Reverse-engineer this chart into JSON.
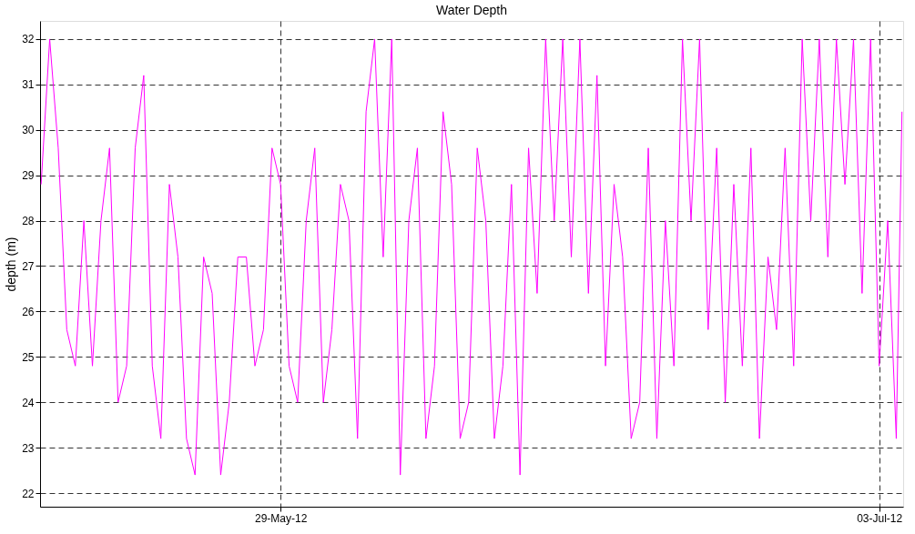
{
  "chart_data": {
    "type": "line",
    "title": "Water Depth",
    "ylabel": "depth (m)",
    "xlim": [
      "2012-05-14T22:30",
      "2012-07-04T09:40"
    ],
    "xticks": [
      {
        "value": "2012-05-29",
        "label": "29-May-12"
      },
      {
        "value": "2012-07-03",
        "label": "03-Jul-12"
      }
    ],
    "ylim": [
      21.7,
      32.4
    ],
    "yticks": [
      22,
      23,
      24,
      25,
      26,
      27,
      28,
      29,
      30,
      31,
      32
    ],
    "grid": true,
    "line_style": "solid",
    "marker": "none",
    "x": [
      "2012-05-15T00:00",
      "2012-05-15T12:00",
      "2012-05-16T00:00",
      "2012-05-16T12:00",
      "2012-05-17T00:00",
      "2012-05-17T12:00",
      "2012-05-18T00:00",
      "2012-05-18T12:00",
      "2012-05-19T00:00",
      "2012-05-19T12:00",
      "2012-05-20T00:00",
      "2012-05-20T12:00",
      "2012-05-21T00:00",
      "2012-05-21T12:00",
      "2012-05-22T00:00",
      "2012-05-22T12:00",
      "2012-05-23T00:00",
      "2012-05-23T12:00",
      "2012-05-24T00:00",
      "2012-05-24T12:00",
      "2012-05-25T00:00",
      "2012-05-25T12:00",
      "2012-05-26T00:00",
      "2012-05-26T12:00",
      "2012-05-27T00:00",
      "2012-05-27T12:00",
      "2012-05-28T00:00",
      "2012-05-28T12:00",
      "2012-05-29T00:00",
      "2012-05-29T12:00",
      "2012-05-30T00:00",
      "2012-05-30T12:00",
      "2012-05-31T00:00",
      "2012-05-31T12:00",
      "2012-06-01T00:00",
      "2012-06-01T12:00",
      "2012-06-02T00:00",
      "2012-06-02T12:00",
      "2012-06-03T00:00",
      "2012-06-03T12:00",
      "2012-06-04T00:00",
      "2012-06-04T12:00",
      "2012-06-05T00:00",
      "2012-06-05T12:00",
      "2012-06-06T00:00",
      "2012-06-06T12:00",
      "2012-06-07T00:00",
      "2012-06-07T12:00",
      "2012-06-08T00:00",
      "2012-06-08T12:00",
      "2012-06-09T00:00",
      "2012-06-09T12:00",
      "2012-06-10T00:00",
      "2012-06-10T12:00",
      "2012-06-11T00:00",
      "2012-06-11T12:00",
      "2012-06-12T00:00",
      "2012-06-12T12:00",
      "2012-06-13T00:00",
      "2012-06-13T12:00",
      "2012-06-14T00:00",
      "2012-06-14T12:00",
      "2012-06-15T00:00",
      "2012-06-15T12:00",
      "2012-06-16T00:00",
      "2012-06-16T12:00",
      "2012-06-17T00:00",
      "2012-06-17T12:00",
      "2012-06-18T00:00",
      "2012-06-18T12:00",
      "2012-06-19T00:00",
      "2012-06-19T12:00",
      "2012-06-20T00:00",
      "2012-06-20T12:00",
      "2012-06-21T00:00",
      "2012-06-21T12:00",
      "2012-06-22T00:00",
      "2012-06-22T12:00",
      "2012-06-23T00:00",
      "2012-06-23T12:00",
      "2012-06-24T00:00",
      "2012-06-24T12:00",
      "2012-06-25T00:00",
      "2012-06-25T12:00",
      "2012-06-26T00:00",
      "2012-06-26T12:00",
      "2012-06-27T00:00",
      "2012-06-27T12:00",
      "2012-06-28T00:00",
      "2012-06-28T12:00",
      "2012-06-29T00:00",
      "2012-06-29T12:00",
      "2012-06-30T00:00",
      "2012-06-30T12:00",
      "2012-07-01T00:00",
      "2012-07-01T12:00",
      "2012-07-02T00:00",
      "2012-07-02T12:00",
      "2012-07-03T00:00",
      "2012-07-03T12:00",
      "2012-07-04T00:00",
      "2012-07-04T08:00"
    ],
    "series": [
      {
        "color": "#ff00ff",
        "values": [
          28.8,
          32,
          29.6,
          25.6,
          24.8,
          28,
          24.8,
          28,
          29.6,
          24,
          24.8,
          29.6,
          31.2,
          24.8,
          23.2,
          28.8,
          27.2,
          23.2,
          22.4,
          27.2,
          26.4,
          22.4,
          24,
          27.2,
          27.2,
          24.8,
          25.6,
          29.6,
          28.8,
          24.8,
          24,
          28,
          29.6,
          24,
          25.6,
          28.8,
          28,
          23.2,
          30.4,
          32,
          27.2,
          32,
          22.4,
          28,
          29.6,
          23.2,
          24.8,
          30.4,
          28.8,
          23.2,
          24,
          29.6,
          28,
          23.2,
          24.8,
          28.8,
          22.4,
          29.6,
          26.4,
          32,
          28,
          32,
          27.2,
          32,
          26.4,
          31.2,
          24.8,
          28.8,
          27.2,
          23.2,
          24,
          29.6,
          23.2,
          28,
          24.8,
          32,
          28,
          32,
          25.6,
          29.6,
          24,
          28.8,
          24.8,
          29.6,
          23.2,
          27.2,
          25.6,
          29.6,
          24.8,
          32,
          28,
          32,
          27.2,
          32,
          28.8,
          32,
          26.4,
          32,
          24.8,
          28,
          23.2,
          30.4
        ]
      }
    ]
  }
}
